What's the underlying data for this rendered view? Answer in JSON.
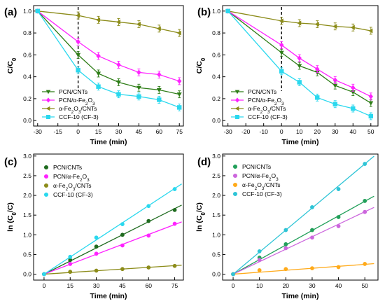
{
  "chart_data": [
    {
      "panel": "(a)",
      "type": "line",
      "xlabel": "Time (min)",
      "ylabel": "C/C0",
      "xlim": [
        -33,
        78
      ],
      "ylim": [
        -0.05,
        1.05
      ],
      "xticks": [
        -30,
        -15,
        0,
        15,
        30,
        45,
        60,
        75
      ],
      "yticks": [
        0.0,
        0.2,
        0.4,
        0.6,
        0.8,
        1.0
      ],
      "vline_x": 0,
      "legend_position": "bottom-left",
      "series": [
        {
          "name": "PCN/CNTs",
          "color": "#2e7d17",
          "marker": "triangle-down",
          "x": [
            -30,
            0,
            15,
            30,
            45,
            60,
            75
          ],
          "y": [
            1.0,
            0.6,
            0.43,
            0.35,
            0.3,
            0.28,
            0.24
          ]
        },
        {
          "name": "PCN/α-Fe2O3",
          "color": "#ff22ff",
          "marker": "diamond",
          "x": [
            -30,
            0,
            15,
            30,
            45,
            60,
            75
          ],
          "y": [
            1.0,
            0.72,
            0.59,
            0.51,
            0.44,
            0.42,
            0.36
          ]
        },
        {
          "name": "α-Fe2O3/CNTs",
          "color": "#8c8c1a",
          "marker": "triangle-left",
          "x": [
            -30,
            0,
            15,
            30,
            45,
            60,
            75
          ],
          "y": [
            1.0,
            0.96,
            0.92,
            0.9,
            0.88,
            0.84,
            0.8
          ]
        },
        {
          "name": "CCF-10 (CF-3)",
          "color": "#2ad8ee",
          "marker": "square",
          "x": [
            -30,
            0,
            15,
            30,
            45,
            60,
            75
          ],
          "y": [
            1.0,
            0.46,
            0.31,
            0.24,
            0.22,
            0.19,
            0.12
          ]
        }
      ]
    },
    {
      "panel": "(b)",
      "type": "line",
      "xlabel": "Time (min)",
      "ylabel": "C/C0",
      "xlim": [
        -33,
        54
      ],
      "ylim": [
        -0.05,
        1.05
      ],
      "xticks": [
        -30,
        -20,
        -10,
        0,
        10,
        20,
        30,
        40,
        50
      ],
      "yticks": [
        0.0,
        0.2,
        0.4,
        0.6,
        0.8,
        1.0
      ],
      "vline_x": 0,
      "legend_position": "bottom-left",
      "series": [
        {
          "name": "PCN/CNTs",
          "color": "#2e7d17",
          "marker": "triangle-down",
          "x": [
            -30,
            0,
            10,
            20,
            30,
            40,
            50
          ],
          "y": [
            1.0,
            0.62,
            0.5,
            0.44,
            0.32,
            0.26,
            0.16
          ]
        },
        {
          "name": "PCN/α-Fe2O3",
          "color": "#ff22ff",
          "marker": "diamond",
          "x": [
            -30,
            0,
            10,
            20,
            30,
            40,
            50
          ],
          "y": [
            1.0,
            0.69,
            0.57,
            0.47,
            0.37,
            0.3,
            0.22
          ]
        },
        {
          "name": "α-Fe2O3/CNTs",
          "color": "#8c8c1a",
          "marker": "triangle-left",
          "x": [
            -30,
            0,
            10,
            20,
            30,
            40,
            50
          ],
          "y": [
            1.0,
            0.91,
            0.89,
            0.88,
            0.86,
            0.85,
            0.82
          ]
        },
        {
          "name": "CCF-10 (CF-3)",
          "color": "#2ad8ee",
          "marker": "square",
          "x": [
            -30,
            0,
            10,
            20,
            30,
            40,
            50
          ],
          "y": [
            1.0,
            0.45,
            0.35,
            0.21,
            0.15,
            0.11,
            0.04
          ]
        }
      ]
    },
    {
      "panel": "(c)",
      "type": "scatter",
      "xlabel": "Time (min)",
      "ylabel": "ln (C0/C)",
      "xlim": [
        -6,
        80
      ],
      "ylim": [
        -0.15,
        3.05
      ],
      "xticks": [
        0,
        15,
        30,
        45,
        60,
        75
      ],
      "yticks": [
        0.0,
        0.5,
        1.0,
        1.5,
        2.0,
        2.5,
        3.0
      ],
      "legend_position": "top-left",
      "series": [
        {
          "name": "PCN/CNTs",
          "color": "#1f6b1f",
          "marker": "circle",
          "x": [
            0,
            15,
            30,
            45,
            60,
            75
          ],
          "y": [
            0,
            0.36,
            0.7,
            1.0,
            1.35,
            1.63
          ],
          "fit_slope": 0.0222
        },
        {
          "name": "PCN/α-Fe2O3",
          "color": "#ff22ff",
          "marker": "circle",
          "x": [
            0,
            15,
            30,
            45,
            60,
            75
          ],
          "y": [
            0,
            0.26,
            0.52,
            0.73,
            0.98,
            1.28
          ],
          "fit_slope": 0.0168
        },
        {
          "name": "α-Fe2O3/CNTs",
          "color": "#8c8c1a",
          "marker": "circle",
          "x": [
            0,
            15,
            30,
            45,
            60,
            75
          ],
          "y": [
            0,
            0.06,
            0.09,
            0.13,
            0.17,
            0.21
          ],
          "fit_slope": 0.0029
        },
        {
          "name": "CCF-10 (CF-3)",
          "color": "#2ad8ee",
          "marker": "circle",
          "x": [
            0,
            15,
            30,
            45,
            60,
            75
          ],
          "y": [
            0,
            0.44,
            0.93,
            1.27,
            1.73,
            2.16
          ],
          "fit_slope": 0.029
        }
      ]
    },
    {
      "panel": "(d)",
      "type": "scatter",
      "xlabel": "Time (min)",
      "ylabel": "ln (C0/C)",
      "xlim": [
        -4,
        55
      ],
      "ylim": [
        -0.15,
        3.05
      ],
      "xticks": [
        0,
        10,
        20,
        30,
        40,
        50
      ],
      "yticks": [
        0.0,
        0.5,
        1.0,
        1.5,
        2.0,
        2.5,
        3.0
      ],
      "legend_position": "top-left",
      "series": [
        {
          "name": "PCN/CNTs",
          "color": "#22a05a",
          "marker": "circle",
          "x": [
            0,
            10,
            20,
            30,
            40,
            50
          ],
          "y": [
            0,
            0.42,
            0.76,
            1.12,
            1.45,
            1.86
          ],
          "fit_slope": 0.037
        },
        {
          "name": "PCN/α-Fe2O3",
          "color": "#cc66dd",
          "marker": "circle",
          "x": [
            0,
            10,
            20,
            30,
            40,
            50
          ],
          "y": [
            0,
            0.36,
            0.66,
            0.93,
            1.22,
            1.58
          ],
          "fit_slope": 0.0317
        },
        {
          "name": "α-Fe2O3/CNTs",
          "color": "#ffaa1a",
          "marker": "circle",
          "x": [
            0,
            10,
            20,
            30,
            40,
            50
          ],
          "y": [
            0,
            0.1,
            0.13,
            0.15,
            0.18,
            0.26
          ],
          "fit_slope": 0.005
        },
        {
          "name": "CCF-10 (CF-3)",
          "color": "#2ec4d6",
          "marker": "circle",
          "x": [
            0,
            10,
            20,
            30,
            40,
            50
          ],
          "y": [
            0,
            0.58,
            1.12,
            1.7,
            2.16,
            2.8
          ],
          "fit_slope": 0.056
        }
      ]
    }
  ]
}
